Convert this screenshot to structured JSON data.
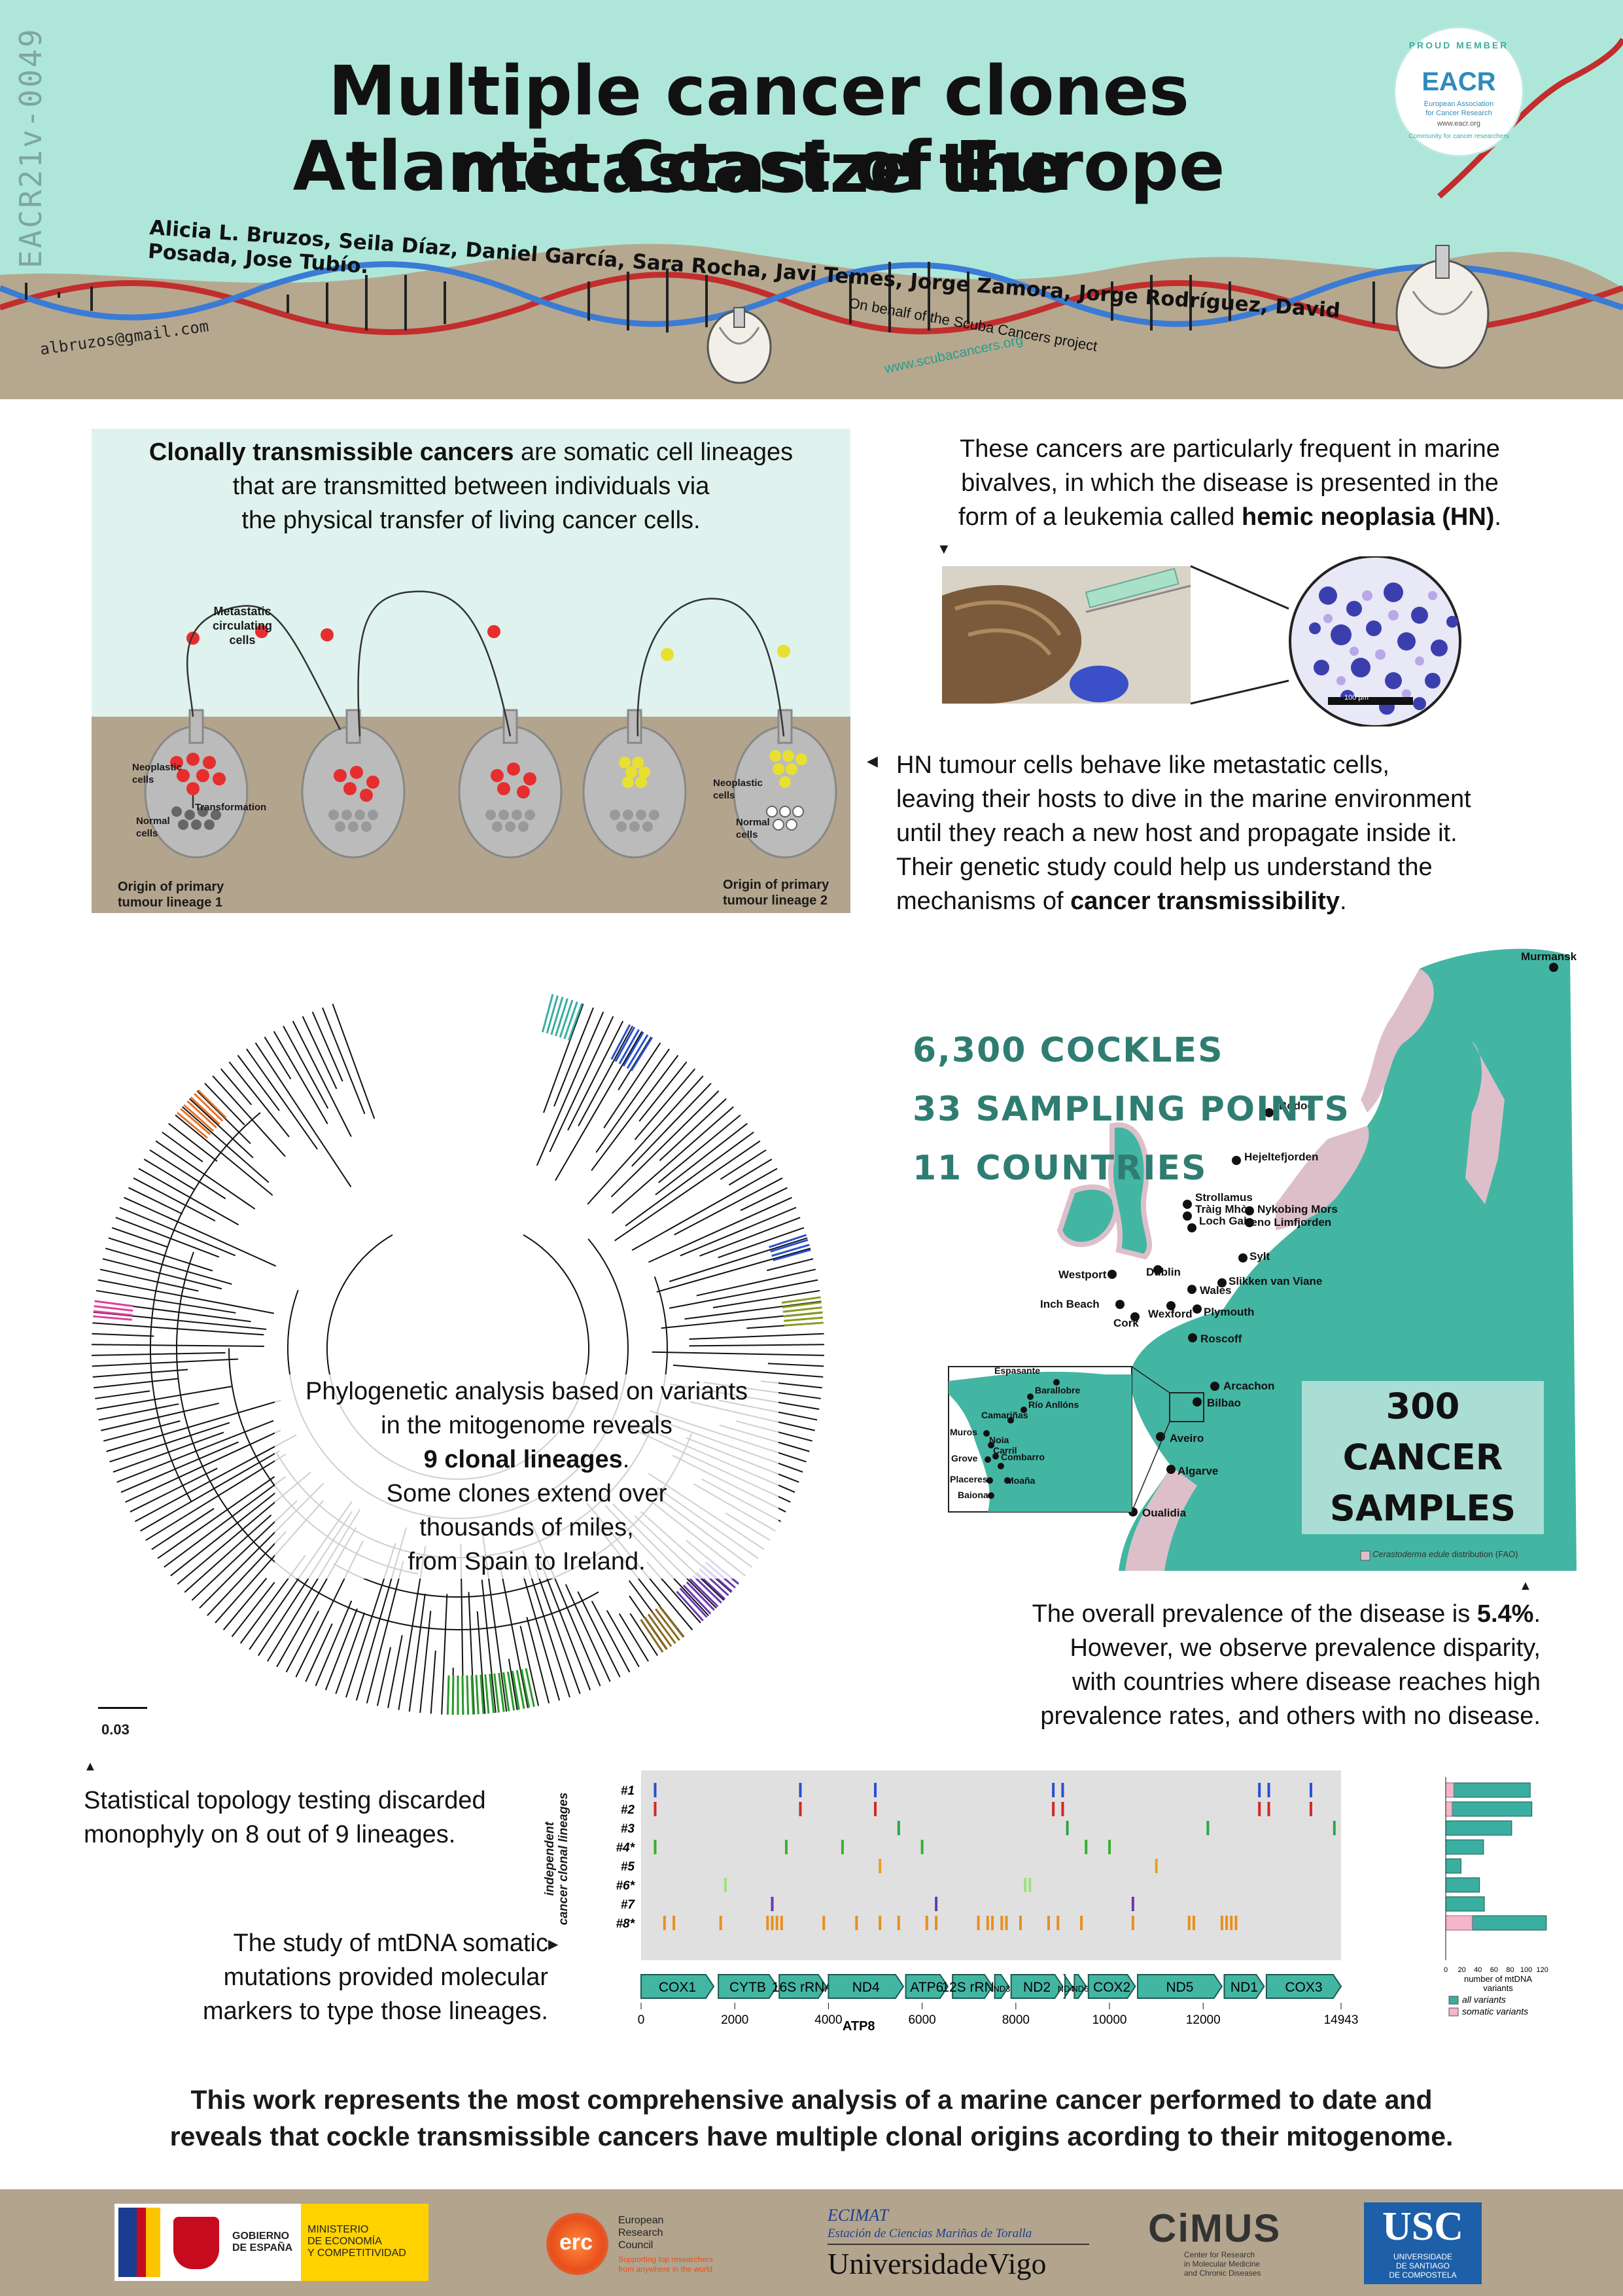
{
  "header": {
    "side_code": "EACR21v-0049",
    "title_line1": "Multiple cancer clones metastasize the",
    "title_line2": "Atlantic Coast of Europe",
    "authors": "Alicia L. Bruzos,  Seila Díaz,  Daniel García,  Sara Rocha,  Javi Temes,  Jorge Zamora,  Jorge Rodríguez,  David Posada,  Jose Tubío.",
    "email": "albruzos@gmail.com",
    "on_behalf": "On behalf of the Scuba Cancers project",
    "website": "www.scubacancers.org",
    "badge": {
      "top": "PROUD MEMBER",
      "name": "EACR",
      "sub1": "European Association",
      "sub2": "for Cancer Research",
      "url": "www.eacr.org",
      "bottom": "Community for cancer researchers"
    }
  },
  "intro": {
    "strong": "Clonally transmissible cancers",
    "rest_line1": " are somatic cell lineages",
    "line2": "that are transmitted between individuals via",
    "line3": "the physical transfer of living cancer cells."
  },
  "diagram": {
    "metastatic_label1": "Metastatic",
    "metastatic_label2": "circulating",
    "metastatic_label3": "cells",
    "neoplastic1": "Neoplastic",
    "neoplastic2": "cells",
    "transformation": "Transformation",
    "normal1": "Normal",
    "normal2": "cells",
    "origin1_line1": "Origin of primary",
    "origin1_line2": "tumour lineage 1",
    "origin2_line1": "Origin of primary",
    "origin2_line2": "tumour lineage 2"
  },
  "bivalve": {
    "line1": "These cancers are particularly frequent in marine",
    "line2": "bivalves, in which the disease is presented in the",
    "line3_pre": "form of a leukemia called ",
    "line3_strong": "hemic neoplasia (HN)",
    "line3_post": ".",
    "scale": "100 µm"
  },
  "hn": {
    "line1": "HN tumour cells behave like metastatic cells,",
    "line2": "leaving their hosts to dive in the marine environment",
    "line3": "until they reach a new host and propagate inside it.",
    "line4": "Their genetic study could help us understand the",
    "line5_pre": "mechanisms of ",
    "line5_strong": "cancer transmissibility",
    "line5_post": "."
  },
  "stats": [
    "6,300 COCKLES",
    "33 SAMPLING POINTS",
    "11 COUNTRIES"
  ],
  "cancer_samples": [
    "300 CANCER",
    "SAMPLES"
  ],
  "map": {
    "legend_species": "Cerastoderma edule",
    "legend_rest": " distribution (FAO)",
    "places": [
      "Murmansk",
      "Bodoe",
      "Hejeltefjorden",
      "Strollamus",
      "Tràig Mhòr",
      "Loch Gair",
      "Nykobing Mors",
      "Veno Limfjorden",
      "Sylt",
      "Slikken van Viane",
      "Westport",
      "Dublin",
      "Inch Beach",
      "Cork",
      "Wales",
      "Wexford",
      "Plymouth",
      "Roscoff",
      "Arcachon",
      "Bilbao",
      "Aveiro",
      "Algarve",
      "Oualidia"
    ],
    "inset_places": [
      "Espasante",
      "Barallobre",
      "Río Anllóns",
      "Camariñas",
      "Muros",
      "Noia",
      "Carril",
      "Grove",
      "Combarro",
      "Placeres",
      "Moaña",
      "Baiona"
    ]
  },
  "phylo": {
    "line1": "Phylogenetic analysis based on variants",
    "line2": "in the mitogenome reveals",
    "line3_strong": "9 clonal lineages",
    "line3_post": ".",
    "line4": "Some clones extend over",
    "line5": "thousands of miles,",
    "line6": "from Spain to Ireland.",
    "scale": "0.03"
  },
  "prevalence": {
    "line1_pre": "The overall prevalence of the disease is ",
    "line1_strong": "5.4%",
    "line1_post": ".",
    "line2": "However, we observe prevalence disparity,",
    "line3": "with countries where disease reaches high",
    "line4": "prevalence rates, and others with no disease."
  },
  "topology": {
    "line1": "Statistical topology testing discarded",
    "line2": "monophyly on 8 out of 9 lineages."
  },
  "mtdna": {
    "line1": "The study of mtDNA somatic",
    "line2": "mutations provided molecular",
    "line3": "markers to type those lineages."
  },
  "chart_data": {
    "type": "bar",
    "ylabel1": "independent",
    "ylabel2": "cancer clonal lineages",
    "lineages": [
      "#1",
      "#2",
      "#3",
      "#4*",
      "#5",
      "#6*",
      "#7",
      "#8*"
    ],
    "genes": [
      "COX1",
      "CYTB",
      "16S rRNA",
      "ND4",
      "ATP6",
      "12S rRNA",
      "ND3",
      "ND2",
      "ND4L",
      "ND6",
      "COX2",
      "ND5",
      "ND1",
      "COX3"
    ],
    "atp8_label": "ATP8",
    "ticks": [
      "0",
      "2000",
      "4000",
      "6000",
      "8000",
      "10000",
      "12000",
      "14943"
    ],
    "xlim": [
      0,
      14943
    ],
    "bar_xlabel1": "number of mtDNA",
    "bar_xlabel2": "variants",
    "bar_ticks": [
      "0",
      "20",
      "40",
      "60",
      "80",
      "100",
      "120"
    ],
    "series": [
      {
        "name": "all variants",
        "color": "#3aaea0",
        "values": [
          105,
          107,
          82,
          47,
          19,
          42,
          48,
          125
        ]
      },
      {
        "name": "somatic variants",
        "color": "#f4b6c8",
        "values": [
          10,
          8,
          0,
          0,
          0,
          0,
          0,
          33
        ]
      }
    ]
  },
  "conclusion": {
    "line1": "This work represents the most comprehensive analysis of a marine cancer performed to date and",
    "line2": "reveals that cockle transmissible cancers have multiple clonal origins acording to their mitogenome."
  },
  "footer": {
    "gov1": "GOBIERNO",
    "gov2": "DE ESPAÑA",
    "min1": "MINISTERIO",
    "min2": "DE ECONOMÍA",
    "min3": "Y COMPETITIVIDAD",
    "erc": "erc",
    "erc1": "European",
    "erc2": "Research",
    "erc3": "Council",
    "erc4": "Supporting top researchers",
    "erc5": "from anywhere in the world",
    "ecimat": "ECIMAT",
    "ecimat_sub": "Estación de Ciencias Mariñas de Toralla",
    "uvigo": "UniversidadeVigo",
    "cimus": "CiMUS",
    "cimus1": "Center for Research",
    "cimus2": "in Molecular Medicine",
    "cimus3": "and Chronic Diseases",
    "usc": "USC",
    "usc1": "UNIVERSIDADE",
    "usc2": "DE SANTIAGO",
    "usc3": "DE COMPOSTELA"
  }
}
